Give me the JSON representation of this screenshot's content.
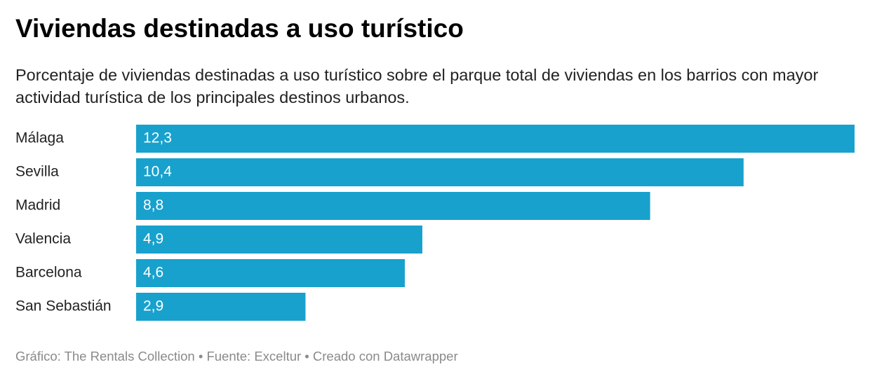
{
  "chart_data": {
    "type": "bar",
    "orientation": "horizontal",
    "title": "Viviendas destinadas a uso turístico",
    "subtitle": "Porcentaje de viviendas destinadas a uso turístico sobre el parque total de viviendas en los barrios con mayor actividad turística de los principales destinos urbanos.",
    "categories": [
      "Málaga",
      "Sevilla",
      "Madrid",
      "Valencia",
      "Barcelona",
      "San Sebastián"
    ],
    "values": [
      12.3,
      10.4,
      8.8,
      4.9,
      4.6,
      2.9
    ],
    "value_labels": [
      "12,3",
      "10,4",
      "8,8",
      "4,9",
      "4,6",
      "2,9"
    ],
    "color": "#18a1cd",
    "source": "Gráfico: The Rentals Collection • Fuente: Exceltur • Creado con Datawrapper"
  }
}
